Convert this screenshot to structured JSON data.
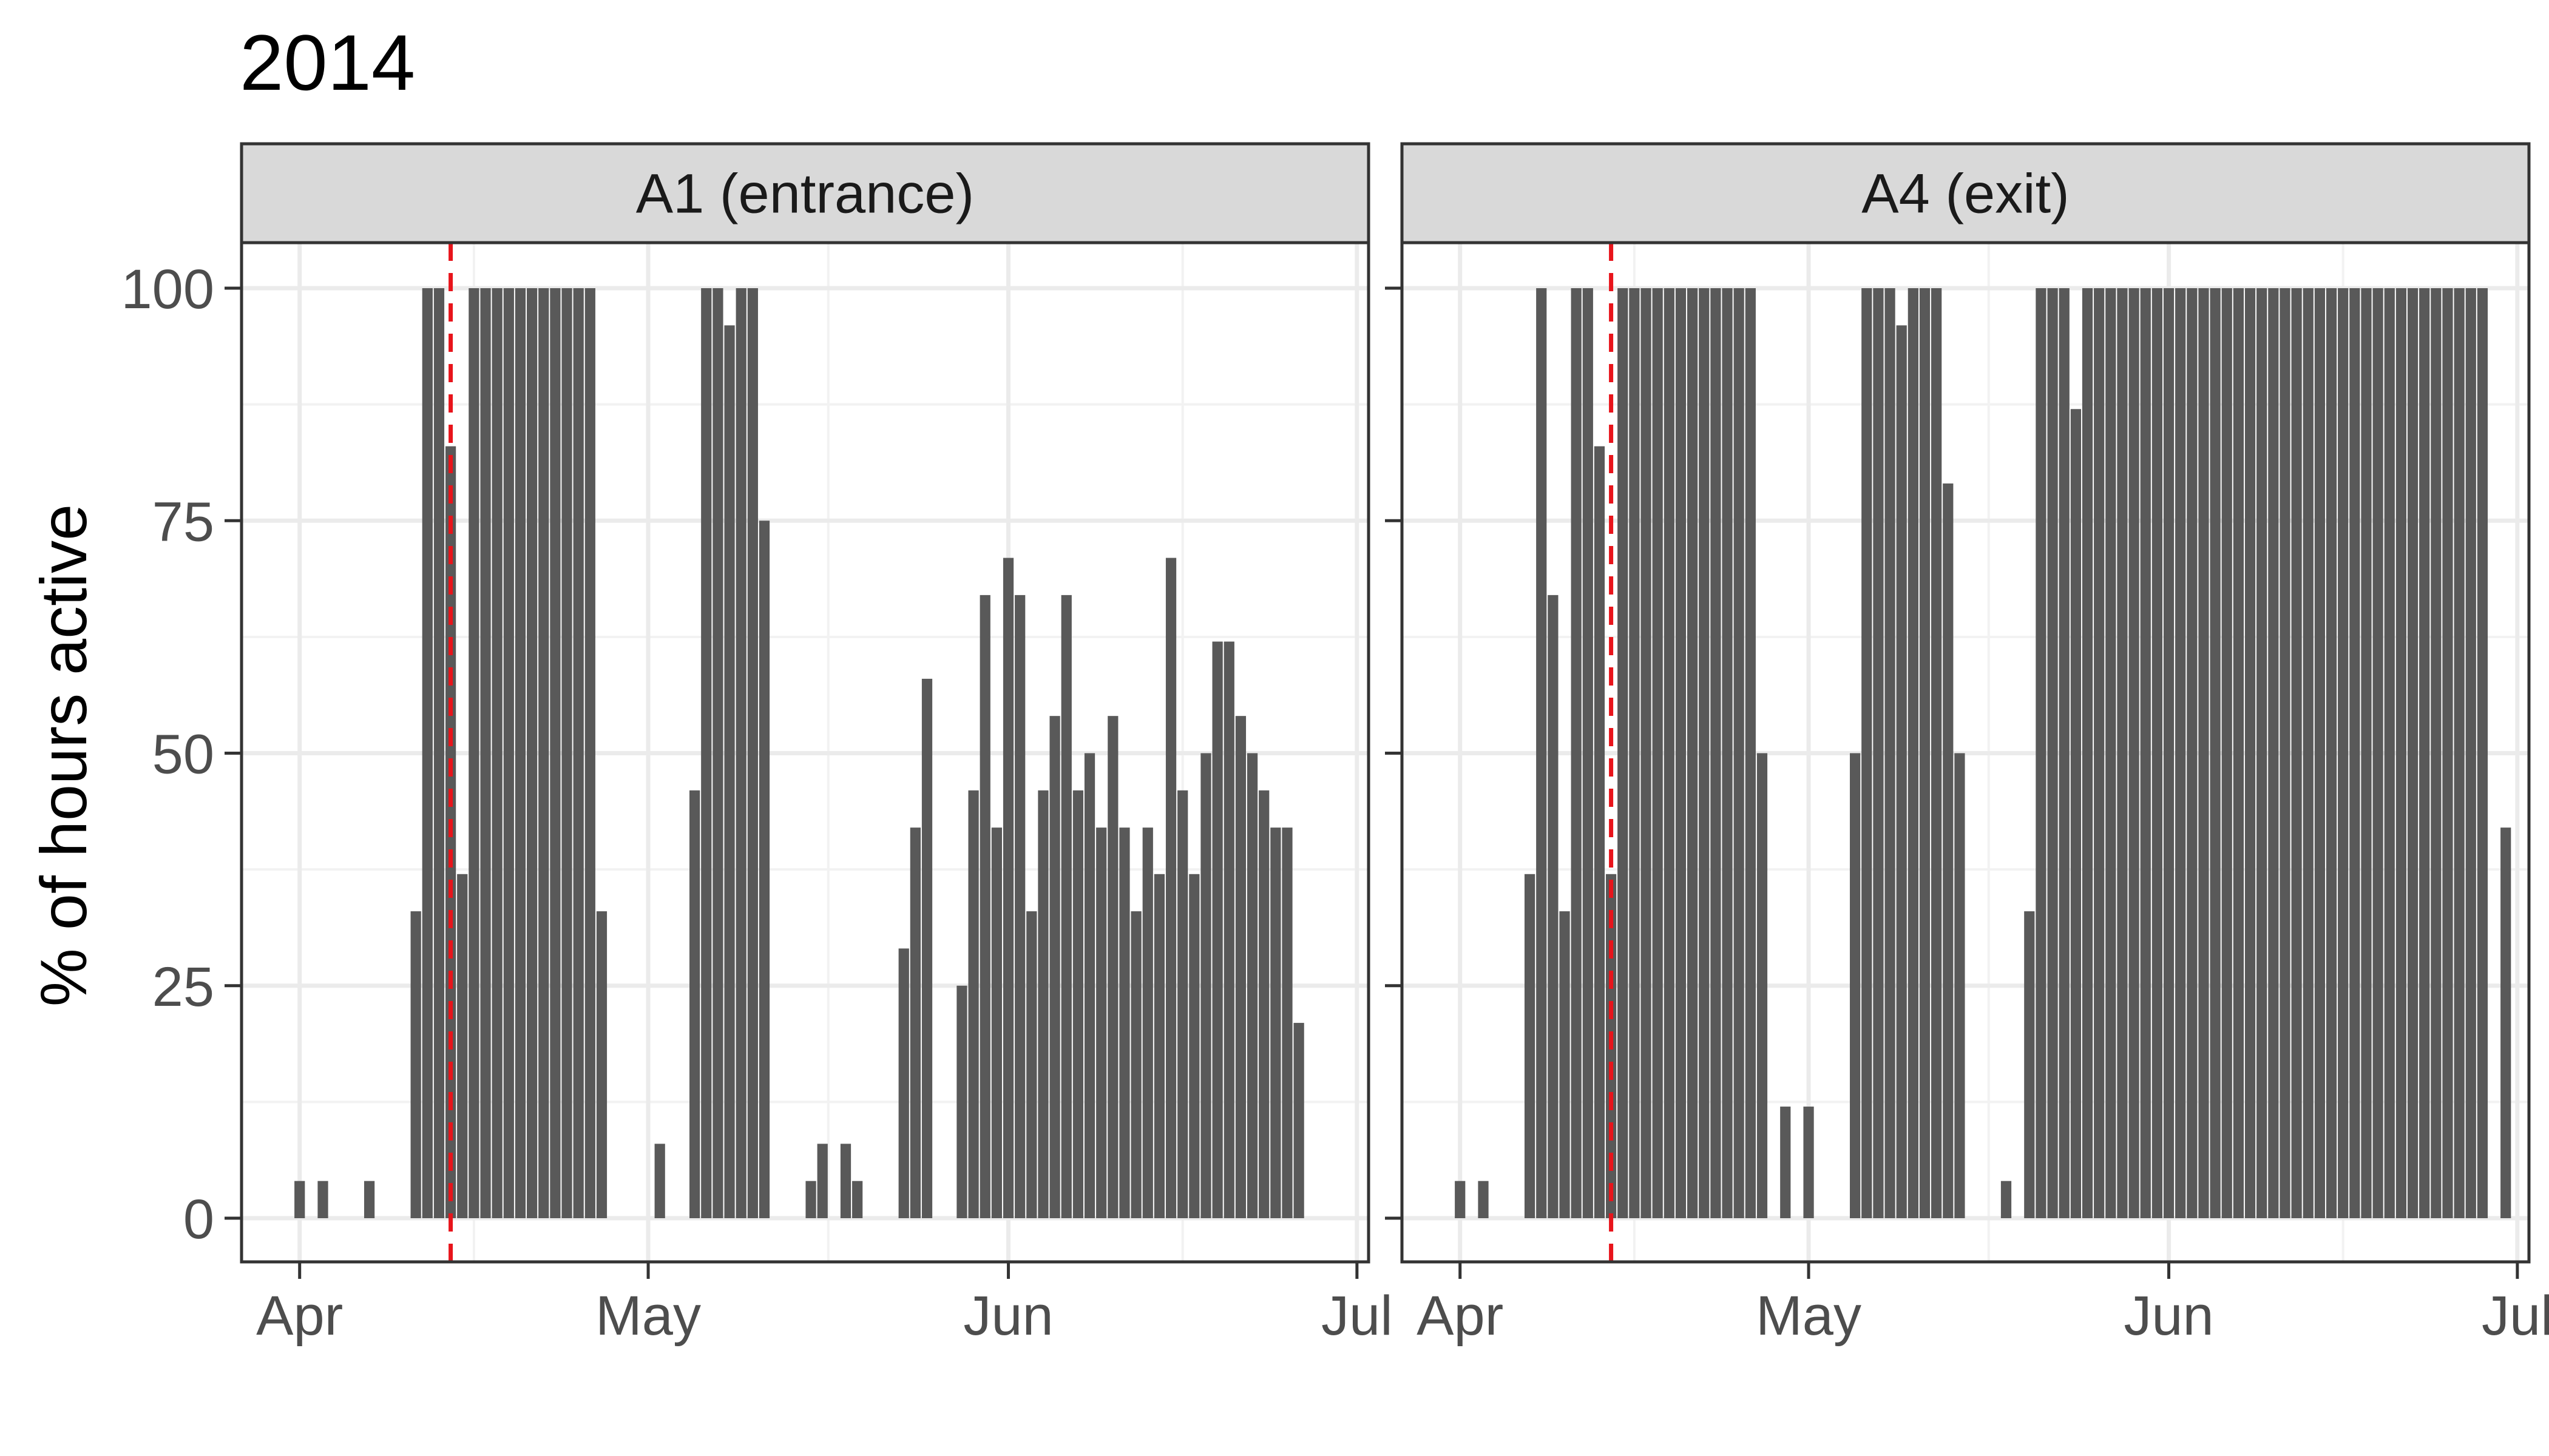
{
  "chart_data": {
    "type": "bar",
    "title": "2014",
    "ylabel": "% of hours active",
    "xlabel": "",
    "ylim": [
      -5,
      100
    ],
    "yticks": [
      0,
      25,
      50,
      75,
      100
    ],
    "xlim": [
      "2014-03-27",
      "2014-07-02"
    ],
    "xticks": [
      {
        "date": "2014-04-01",
        "label": "Apr"
      },
      {
        "date": "2014-05-01",
        "label": "May"
      },
      {
        "date": "2014-06-01",
        "label": "Jun"
      },
      {
        "date": "2014-07-01",
        "label": "Jul"
      }
    ],
    "grid": true,
    "reference_line": {
      "date": "2014-04-14",
      "color": "#e8141b",
      "style": "dashed"
    },
    "bar_color": "#595959",
    "panels": [
      {
        "name": "A1 (entrance)",
        "start_date": "2014-04-01",
        "values": [
          4,
          0,
          4,
          0,
          0,
          0,
          4,
          0,
          0,
          0,
          33,
          100,
          100,
          83,
          37,
          100,
          100,
          100,
          100,
          100,
          100,
          100,
          100,
          100,
          100,
          100,
          33,
          0,
          0,
          0,
          0,
          8,
          0,
          0,
          46,
          100,
          100,
          96,
          100,
          100,
          75,
          0,
          0,
          0,
          4,
          8,
          0,
          8,
          4,
          0,
          0,
          0,
          29,
          42,
          58,
          0,
          0,
          25,
          46,
          67,
          42,
          71,
          67,
          33,
          46,
          54,
          67,
          46,
          50,
          42,
          54,
          42,
          33,
          42,
          37,
          71,
          46,
          37,
          50,
          62,
          62,
          54,
          50,
          46,
          42,
          42,
          21
        ]
      },
      {
        "name": "A4 (exit)",
        "start_date": "2014-04-01",
        "values": [
          4,
          0,
          4,
          0,
          0,
          0,
          37,
          100,
          67,
          33,
          100,
          100,
          83,
          37,
          100,
          100,
          100,
          100,
          100,
          100,
          100,
          100,
          100,
          100,
          100,
          100,
          50,
          0,
          12,
          0,
          12,
          0,
          0,
          0,
          50,
          100,
          100,
          100,
          96,
          100,
          100,
          100,
          79,
          50,
          0,
          0,
          0,
          4,
          0,
          33,
          100,
          100,
          100,
          87,
          100,
          100,
          100,
          100,
          100,
          100,
          100,
          100,
          100,
          100,
          100,
          100,
          100,
          100,
          100,
          100,
          100,
          100,
          100,
          100,
          100,
          100,
          100,
          100,
          100,
          100,
          100,
          100,
          100,
          100,
          100,
          100,
          100,
          100,
          100,
          0,
          42
        ]
      }
    ]
  }
}
